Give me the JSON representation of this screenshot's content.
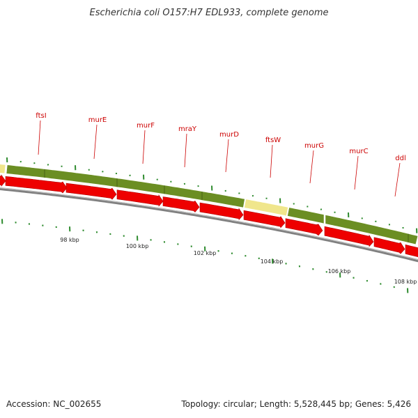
{
  "title": "Escherichia coli O157:H7 EDL933, complete genome",
  "footer": {
    "accession": "Accession: NC_002655",
    "summary": "Topology: circular; Length: 5,528,445 bp; Genes: 5,426"
  },
  "genes": [
    "ftsI",
    "murE",
    "murF",
    "mraY",
    "murD",
    "ftsW",
    "murG",
    "murC",
    "ddl"
  ],
  "kbp_labels": [
    "98 kbp",
    "100 kbp",
    "102 kbp",
    "104 kbp",
    "106 kbp",
    "108 kbp"
  ],
  "colors": {
    "cds_arrow": "#ee0000",
    "feature_green": "#6b8e23",
    "feature_yellow": "#f0e68c",
    "backbone": "#808080",
    "tick": "#2e8b2e",
    "label": "#cc0000"
  }
}
